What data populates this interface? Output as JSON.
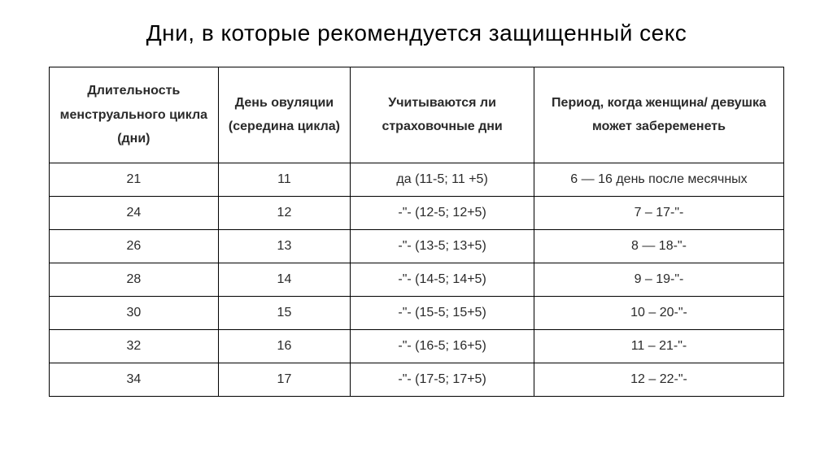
{
  "title": "Дни, в которые рекомендуется защищенный секс",
  "table": {
    "columns": [
      "Длительность менструального цикла (дни)",
      "День овуляции (середина цикла)",
      "Учитываются ли страховочные дни",
      "Период, когда женщина/ девушка может забеременеть"
    ],
    "rows": [
      [
        "21",
        "11",
        "да (11-5; 11 +5)",
        "6 — 16 день после месячных"
      ],
      [
        "24",
        "12",
        "-\"- (12-5; 12+5)",
        "7 – 17-\"-"
      ],
      [
        "26",
        "13",
        "-\"- (13-5; 13+5)",
        "8 — 18-\"-"
      ],
      [
        "28",
        "14",
        "-\"- (14-5; 14+5)",
        "9 – 19-\"-"
      ],
      [
        "30",
        "15",
        "-\"- (15-5; 15+5)",
        "10 – 20-\"-"
      ],
      [
        "32",
        "16",
        "-\"- (16-5; 16+5)",
        "11 – 21-\"-"
      ],
      [
        "34",
        "17",
        "-\"- (17-5; 17+5)",
        "12 – 22-\"-"
      ]
    ],
    "border_color": "#000000",
    "text_color": "#2a2a2a",
    "background_color": "#ffffff",
    "header_fontsize": 16,
    "cell_fontsize": 16,
    "title_fontsize": 28,
    "column_widths_pct": [
      23,
      18,
      25,
      34
    ]
  }
}
